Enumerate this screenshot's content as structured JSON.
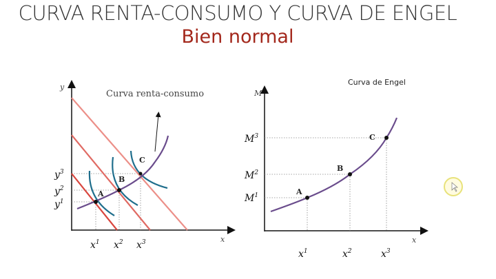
{
  "slide": {
    "title": "CURVA RENTA-CONSUMO Y CURVA DE ENGEL",
    "subtitle": "Bien normal"
  },
  "left_diagram": {
    "caption": "Curva renta-consumo",
    "y_axis": "y",
    "x_axis": "x",
    "points": [
      "A",
      "B",
      "C"
    ],
    "y_ticks": [
      {
        "base": "y",
        "sup": "1"
      },
      {
        "base": "y",
        "sup": "2"
      },
      {
        "base": "y",
        "sup": "3"
      }
    ],
    "x_ticks": [
      {
        "base": "x",
        "sup": "1"
      },
      {
        "base": "x",
        "sup": "2"
      },
      {
        "base": "x",
        "sup": "3"
      }
    ]
  },
  "right_diagram": {
    "caption": "Curva de Engel",
    "y_axis": "M",
    "x_axis": "x",
    "points": [
      "A",
      "B",
      "C"
    ],
    "y_ticks": [
      {
        "base": "M",
        "sup": "1"
      },
      {
        "base": "M",
        "sup": "2"
      },
      {
        "base": "M",
        "sup": "3"
      }
    ],
    "x_ticks": [
      {
        "base": "x",
        "sup": "1"
      },
      {
        "base": "x",
        "sup": "2"
      },
      {
        "base": "x",
        "sup": "3"
      }
    ]
  },
  "colors": {
    "budget_line": "#e06a63",
    "indifference": "#1f6e8c",
    "curve": "#6a4c8c",
    "subtitle": "#a3281c"
  }
}
